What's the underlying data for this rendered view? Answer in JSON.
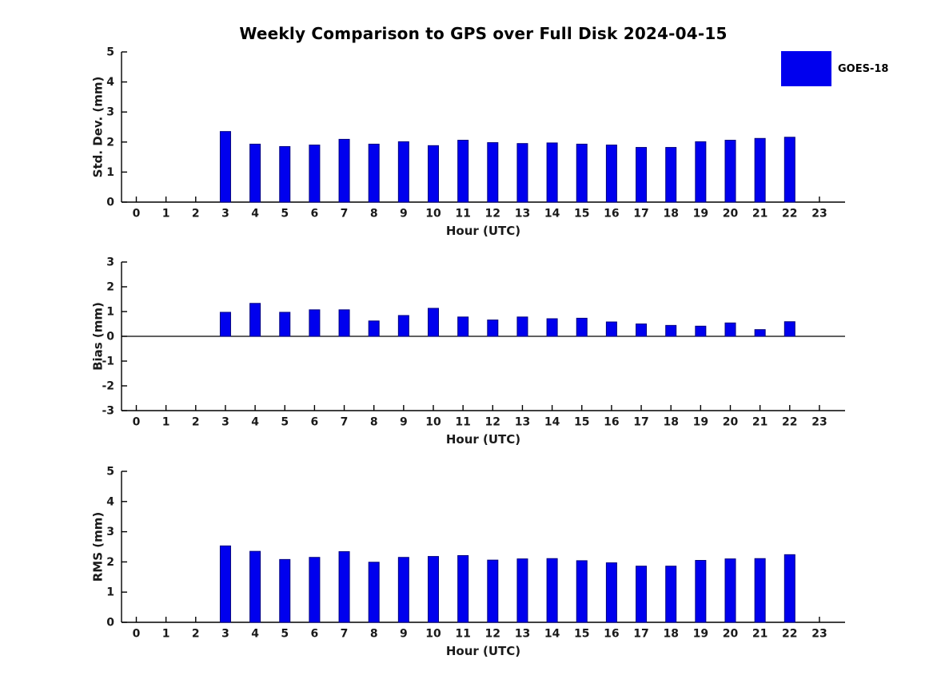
{
  "title": "Weekly Comparison to GPS over Full Disk 2024-04-15",
  "legend": {
    "label": "GOES-18",
    "color": "#0000ee"
  },
  "bar_style": {
    "fill": "#0000ee",
    "edge": "#000080"
  },
  "chart_data": [
    {
      "type": "bar",
      "name": "std-dev",
      "title": "",
      "xlabel": "Hour (UTC)",
      "ylabel": "Std. Dev. (mm)",
      "ylim": [
        0,
        5
      ],
      "yticks": [
        0,
        1,
        2,
        3,
        4,
        5
      ],
      "ytick_labels": [
        "0",
        "1",
        "2",
        "3",
        "4",
        "5"
      ],
      "categories": [
        "0",
        "1",
        "2",
        "3",
        "4",
        "5",
        "6",
        "7",
        "8",
        "9",
        "10",
        "11",
        "12",
        "13",
        "14",
        "15",
        "16",
        "17",
        "18",
        "19",
        "20",
        "21",
        "22",
        "23"
      ],
      "grid": false,
      "legend_position": "upper-right-outside",
      "series": [
        {
          "name": "GOES-18",
          "values": [
            null,
            null,
            null,
            2.35,
            1.93,
            1.85,
            1.9,
            2.09,
            1.93,
            2.01,
            1.88,
            2.06,
            1.98,
            1.95,
            1.97,
            1.93,
            1.9,
            1.82,
            1.82,
            2.01,
            2.06,
            2.12,
            2.16,
            null
          ]
        }
      ]
    },
    {
      "type": "bar",
      "name": "bias",
      "title": "",
      "xlabel": "Hour (UTC)",
      "ylabel": "Bias (mm)",
      "ylim": [
        -3,
        3
      ],
      "yticks": [
        -3,
        -2,
        -1,
        0,
        1,
        2,
        3
      ],
      "ytick_labels": [
        "-3",
        "-2",
        "-1",
        "0",
        "1",
        "2",
        "3"
      ],
      "categories": [
        "0",
        "1",
        "2",
        "3",
        "4",
        "5",
        "6",
        "7",
        "8",
        "9",
        "10",
        "11",
        "12",
        "13",
        "14",
        "15",
        "16",
        "17",
        "18",
        "19",
        "20",
        "21",
        "22",
        "23"
      ],
      "grid": false,
      "zero_line": true,
      "series": [
        {
          "name": "GOES-18",
          "values": [
            null,
            null,
            null,
            0.97,
            1.33,
            0.97,
            1.07,
            1.07,
            0.62,
            0.84,
            1.13,
            0.78,
            0.66,
            0.78,
            0.71,
            0.73,
            0.58,
            0.5,
            0.44,
            0.41,
            0.54,
            0.27,
            0.59,
            null
          ]
        }
      ]
    },
    {
      "type": "bar",
      "name": "rms",
      "title": "",
      "xlabel": "Hour (UTC)",
      "ylabel": "RMS (mm)",
      "ylim": [
        0,
        5
      ],
      "yticks": [
        0,
        1,
        2,
        3,
        4,
        5
      ],
      "ytick_labels": [
        "0",
        "1",
        "2",
        "3",
        "4",
        "5"
      ],
      "categories": [
        "0",
        "1",
        "2",
        "3",
        "4",
        "5",
        "6",
        "7",
        "8",
        "9",
        "10",
        "11",
        "12",
        "13",
        "14",
        "15",
        "16",
        "17",
        "18",
        "19",
        "20",
        "21",
        "22",
        "23"
      ],
      "grid": false,
      "series": [
        {
          "name": "GOES-18",
          "values": [
            null,
            null,
            null,
            2.53,
            2.35,
            2.08,
            2.15,
            2.34,
            1.99,
            2.15,
            2.18,
            2.21,
            2.06,
            2.1,
            2.11,
            2.04,
            1.97,
            1.86,
            1.86,
            2.05,
            2.1,
            2.11,
            2.24,
            null
          ]
        }
      ]
    }
  ]
}
